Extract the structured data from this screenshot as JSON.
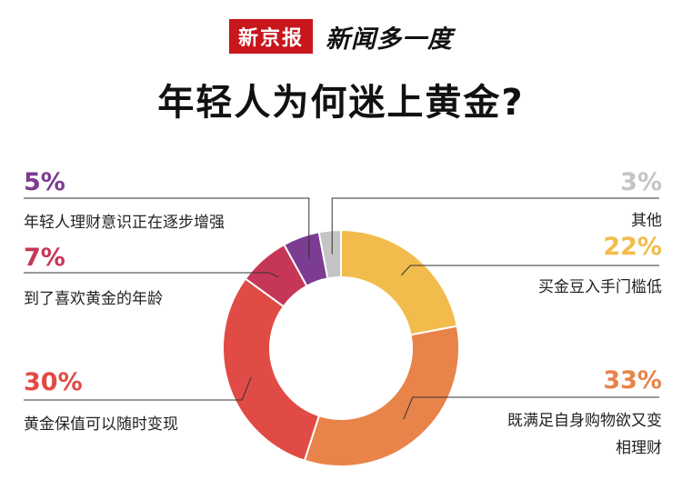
{
  "brand": {
    "logo": "新京报",
    "column": "新闻多一度"
  },
  "title": "年轻人为何迷上黄金?",
  "chart_data": {
    "type": "pie",
    "donut": true,
    "title": "年轻人为何迷上黄金?",
    "slices": [
      {
        "label": "买金豆入手门槛低",
        "value": 22,
        "value_label": "22%",
        "color": "#f2bc4c"
      },
      {
        "label": "既满足自身购物欲又变相理财",
        "value": 33,
        "value_label": "33%",
        "color": "#e8834a"
      },
      {
        "label": "黄金保值可以随时变现",
        "value": 30,
        "value_label": "30%",
        "color": "#e14b45"
      },
      {
        "label": "到了喜欢黄金的年龄",
        "value": 7,
        "value_label": "7%",
        "color": "#c63757"
      },
      {
        "label": "年轻人理财意识正在逐步增强",
        "value": 5,
        "value_label": "5%",
        "color": "#7b3c92"
      },
      {
        "label": "其他",
        "value": 3,
        "value_label": "3%",
        "color": "#c4c4c4"
      }
    ]
  }
}
